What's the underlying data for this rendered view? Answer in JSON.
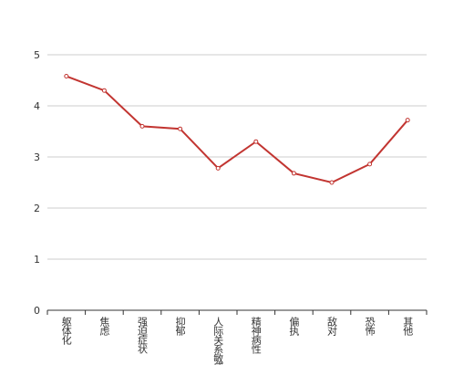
{
  "chart_data": {
    "type": "line",
    "categories": [
      "躯体化",
      "焦虑",
      "强迫症状",
      "抑郁",
      "人际关系敏感",
      "精神病性",
      "偏执",
      "敌对",
      "恐怖",
      "其他"
    ],
    "series": [
      {
        "color": "#c23531",
        "values": [
          4.58,
          4.3,
          3.6,
          3.55,
          2.78,
          3.3,
          2.68,
          2.5,
          2.86,
          3.72
        ]
      }
    ],
    "ylim": [
      0,
      5
    ],
    "yticks": [
      0,
      1,
      2,
      3,
      4,
      5
    ],
    "grid": true
  }
}
